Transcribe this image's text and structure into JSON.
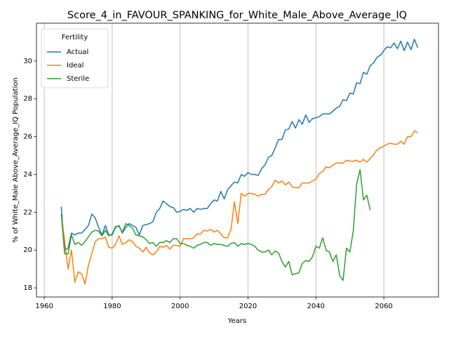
{
  "chart_data": {
    "type": "line",
    "title": "Score_4_in_FAVOUR_SPANKING_for_White_Male_Above_Average_IQ",
    "x_label": "Years",
    "y_label": "% of White_Male Above_Average_IQ Population",
    "legend_title": "Fertility",
    "legend": "upper left",
    "grid": "x",
    "xlim": [
      1957.7,
      2076.1
    ],
    "ylim": [
      17.52,
      32.0
    ],
    "xticks": [
      1960,
      1980,
      2000,
      2020,
      2040,
      2060
    ],
    "yticks": [
      18,
      20,
      22,
      24,
      26,
      28,
      30
    ],
    "x": [
      1965,
      1966,
      1967,
      1968,
      1969,
      1970,
      1971,
      1972,
      1973,
      1974,
      1975,
      1976,
      1977,
      1978,
      1979,
      1980,
      1981,
      1982,
      1983,
      1984,
      1985,
      1986,
      1987,
      1988,
      1989,
      1990,
      1991,
      1992,
      1993,
      1994,
      1995,
      1996,
      1997,
      1998,
      1999,
      2000,
      2001,
      2002,
      2003,
      2004,
      2005,
      2006,
      2007,
      2008,
      2009,
      2010,
      2011,
      2012,
      2013,
      2014,
      2015,
      2016,
      2017,
      2018,
      2019,
      2020,
      2021,
      2022,
      2023,
      2024,
      2025,
      2026,
      2027,
      2028,
      2029,
      2030,
      2031,
      2032,
      2033,
      2034,
      2035,
      2036,
      2037,
      2038,
      2039,
      2040,
      2041,
      2042,
      2043,
      2044,
      2045,
      2046,
      2047,
      2048,
      2049,
      2050,
      2051,
      2052,
      2053,
      2054,
      2055,
      2056,
      2057,
      2058,
      2059,
      2060,
      2061,
      2062,
      2063,
      2064,
      2065,
      2066,
      2067,
      2068,
      2069,
      2070
    ],
    "series": [
      {
        "name": "Actual",
        "color": "#1f77b4",
        "values": [
          22.3,
          20.0,
          20.1,
          20.9,
          20.8,
          20.9,
          20.9,
          21.1,
          21.3,
          21.9,
          21.7,
          21.2,
          20.8,
          21.3,
          20.8,
          20.8,
          21.2,
          21.3,
          20.9,
          21.2,
          21.4,
          21.3,
          21.2,
          20.8,
          21.3,
          21.35,
          21.4,
          21.5,
          22.0,
          22.2,
          22.6,
          22.45,
          22.3,
          22.25,
          22.0,
          22.05,
          22.15,
          22.1,
          22.2,
          22.0,
          22.2,
          22.15,
          22.2,
          22.2,
          22.45,
          22.65,
          22.6,
          23.1,
          22.7,
          23.2,
          23.4,
          23.6,
          23.55,
          24.0,
          23.9,
          24.1,
          24.0,
          24.0,
          23.95,
          24.3,
          24.5,
          24.9,
          25.0,
          25.4,
          25.85,
          25.85,
          26.35,
          26.4,
          26.8,
          26.45,
          26.9,
          26.65,
          27.15,
          26.75,
          26.95,
          27.0,
          27.05,
          27.2,
          27.2,
          27.2,
          27.35,
          27.5,
          27.6,
          27.95,
          27.9,
          28.3,
          28.25,
          28.85,
          28.8,
          29.4,
          29.3,
          29.75,
          29.9,
          30.2,
          30.3,
          30.55,
          30.75,
          30.7,
          30.95,
          30.65,
          31.05,
          30.55,
          31.0,
          30.6,
          31.15,
          30.7
        ]
      },
      {
        "name": "Ideal",
        "color": "#ff7f0e",
        "values": [
          21.9,
          20.5,
          19.0,
          20.0,
          18.3,
          18.85,
          18.75,
          18.2,
          19.2,
          19.8,
          20.45,
          20.6,
          20.6,
          20.7,
          20.15,
          20.1,
          20.3,
          20.75,
          20.3,
          20.4,
          20.55,
          20.45,
          20.2,
          20.1,
          19.9,
          20.15,
          19.85,
          19.75,
          19.9,
          20.2,
          20.15,
          20.25,
          20.05,
          20.25,
          20.25,
          20.2,
          20.6,
          20.6,
          20.6,
          20.65,
          20.85,
          20.85,
          21.05,
          21.0,
          21.1,
          20.95,
          21.05,
          20.85,
          20.65,
          20.65,
          21.1,
          22.55,
          21.4,
          23.0,
          22.85,
          23.0,
          23.0,
          22.95,
          22.85,
          22.95,
          22.95,
          23.2,
          23.35,
          23.7,
          23.55,
          23.65,
          23.45,
          23.6,
          23.35,
          23.3,
          23.3,
          23.55,
          23.55,
          23.55,
          23.65,
          23.75,
          24.05,
          24.15,
          24.4,
          24.35,
          24.5,
          24.6,
          24.6,
          24.6,
          24.75,
          24.7,
          24.7,
          24.75,
          24.65,
          24.8,
          24.65,
          24.85,
          25.05,
          25.3,
          25.4,
          25.5,
          25.6,
          25.65,
          25.6,
          25.6,
          25.75,
          25.6,
          26.0,
          26.0,
          26.3,
          26.2
        ]
      },
      {
        "name": "Sterile",
        "color": "#2ca02c",
        "values": [
          21.9,
          19.8,
          19.8,
          20.8,
          20.3,
          20.4,
          20.25,
          20.45,
          20.7,
          20.95,
          21.05,
          21.0,
          20.75,
          21.05,
          20.75,
          20.85,
          21.25,
          21.25,
          20.95,
          21.4,
          21.3,
          21.15,
          20.8,
          20.75,
          20.7,
          20.55,
          20.35,
          20.4,
          20.2,
          20.4,
          20.4,
          20.5,
          20.4,
          20.6,
          20.6,
          20.35,
          20.35,
          20.25,
          20.2,
          20.1,
          20.25,
          20.3,
          20.4,
          20.4,
          20.25,
          20.35,
          20.3,
          20.3,
          20.25,
          20.2,
          20.35,
          20.4,
          20.2,
          20.35,
          20.3,
          20.35,
          20.3,
          20.2,
          20.0,
          19.9,
          19.9,
          20.0,
          19.75,
          19.95,
          19.85,
          19.4,
          19.1,
          19.4,
          18.7,
          18.75,
          18.8,
          19.3,
          19.45,
          19.4,
          19.65,
          20.2,
          20.1,
          20.65,
          20.0,
          19.9,
          19.4,
          19.75,
          18.65,
          18.4,
          20.1,
          19.9,
          21.0,
          23.5,
          24.25,
          22.65,
          22.9,
          22.1,
          null,
          null,
          null,
          null,
          null,
          null,
          null,
          null,
          null,
          null,
          null,
          null,
          null,
          null
        ]
      }
    ]
  }
}
